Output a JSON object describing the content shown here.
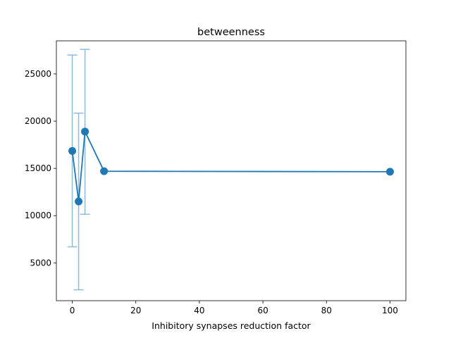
{
  "chart_data": {
    "type": "line",
    "title": "betweenness",
    "xlabel": "Inhibitory synapses reduction factor",
    "ylabel": "",
    "xlim": [
      -5,
      105
    ],
    "ylim": [
      1000,
      28500
    ],
    "x_ticks": [
      0,
      20,
      40,
      60,
      80,
      100
    ],
    "y_ticks": [
      5000,
      10000,
      15000,
      20000,
      25000
    ],
    "x_tick_labels": [
      "0",
      "20",
      "40",
      "60",
      "80",
      "100"
    ],
    "y_tick_labels": [
      "5000",
      "10000",
      "15000",
      "20000",
      "25000"
    ],
    "grid": false,
    "legend": "none",
    "series": [
      {
        "color": "#1f77b4",
        "error_color": "#8fbbd9",
        "x": [
          0,
          2,
          4,
          10,
          100
        ],
        "y": [
          16850,
          11500,
          18900,
          14700,
          14650
        ],
        "error_low": [
          6700,
          2150,
          10150,
          14700,
          14650
        ],
        "error_high": [
          27000,
          20850,
          27600,
          14700,
          14650
        ]
      }
    ]
  }
}
